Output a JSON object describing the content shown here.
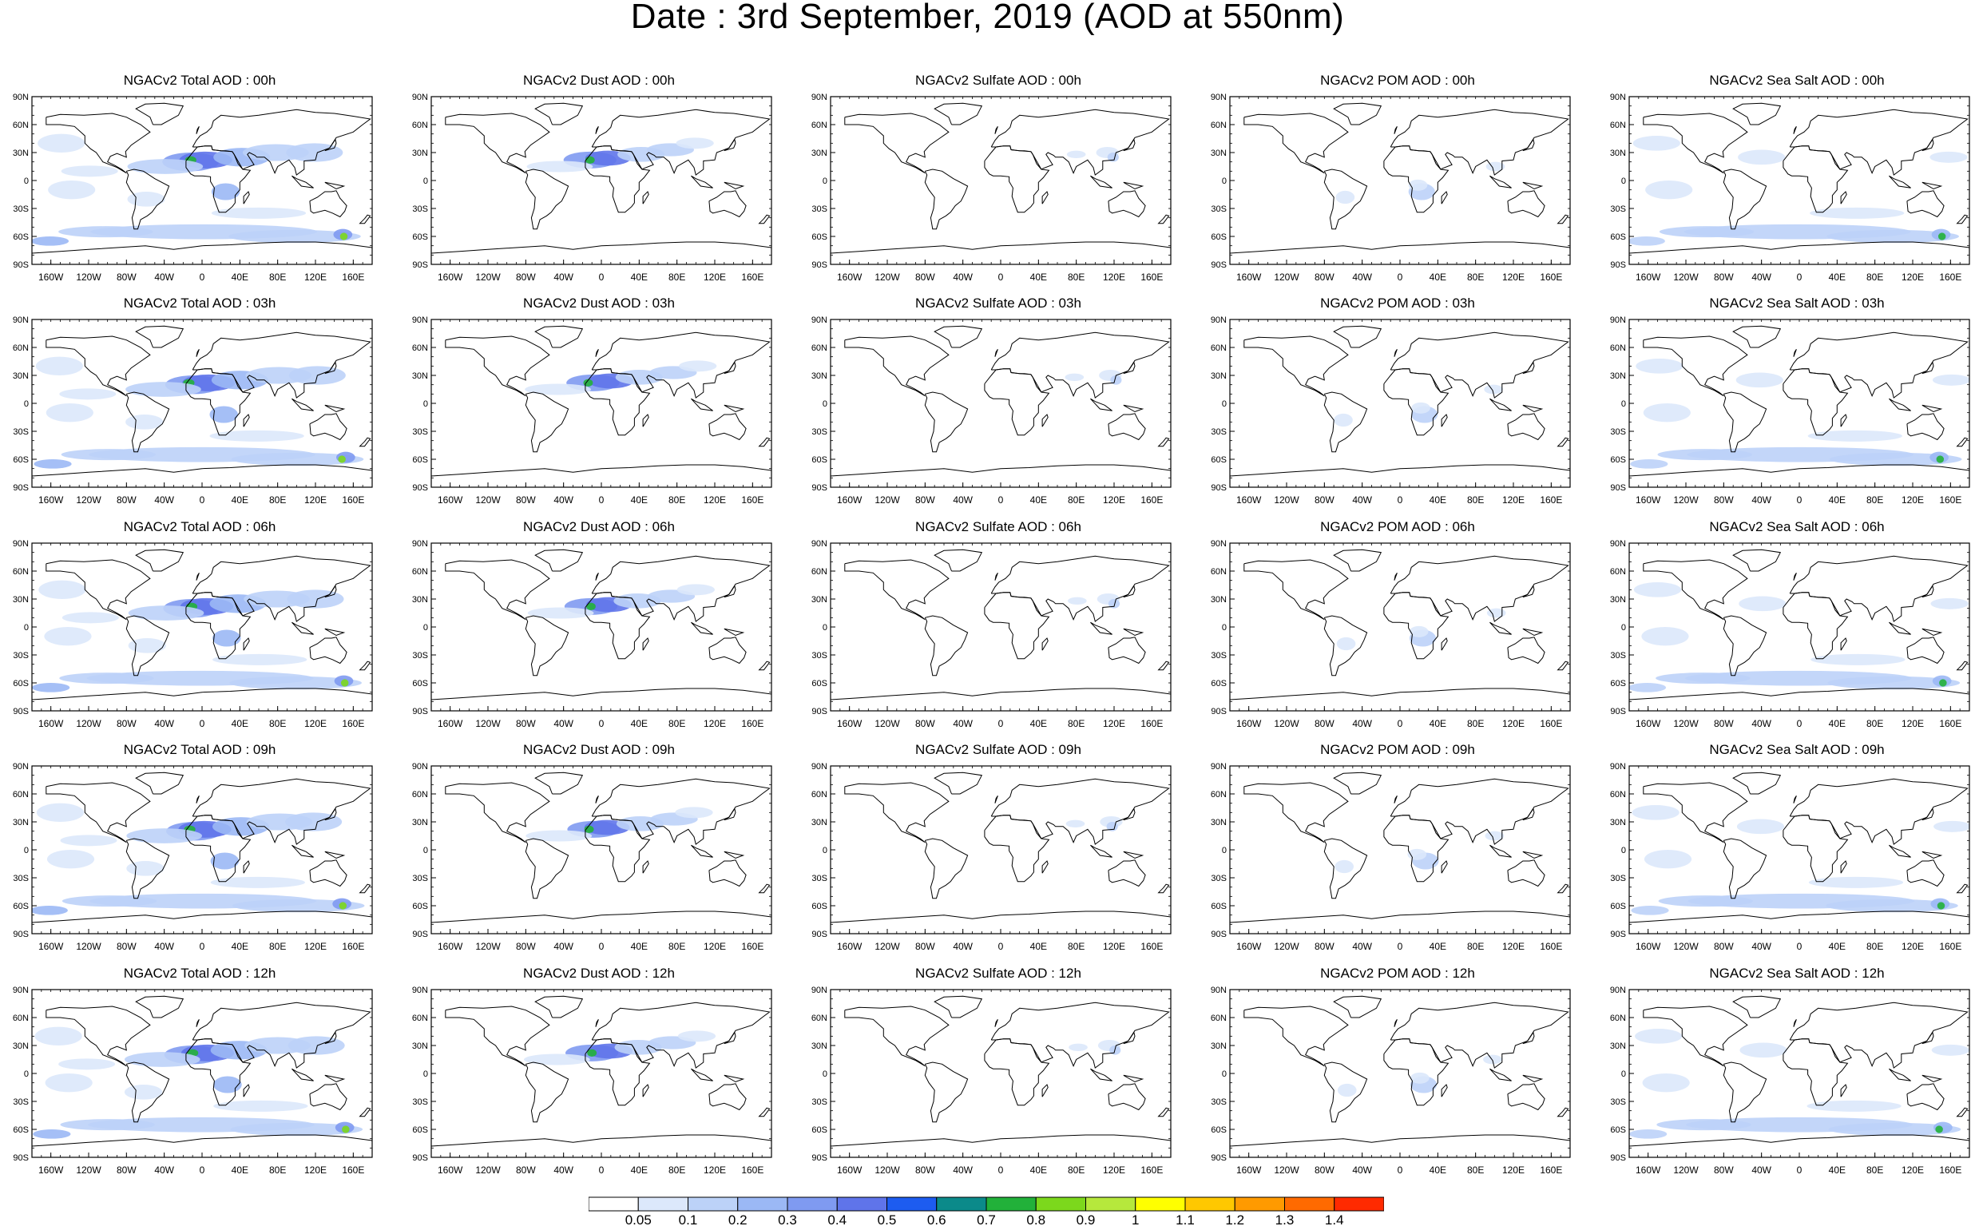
{
  "title": "Date : 3rd September, 2019 (AOD at 550nm)",
  "lat_ticks": [
    "90N",
    "60N",
    "30N",
    "0",
    "30S",
    "60S",
    "90S"
  ],
  "lon_ticks": [
    "160W",
    "120W",
    "80W",
    "40W",
    "0",
    "40E",
    "80E",
    "120E",
    "160E"
  ],
  "panels": [
    [
      "NGACv2 Total AOD : 00h",
      "NGACv2 Dust AOD : 00h",
      "NGACv2 Sulfate AOD : 00h",
      "NGACv2 POM AOD : 00h",
      "NGACv2 Sea Salt AOD : 00h"
    ],
    [
      "NGACv2 Total AOD : 03h",
      "NGACv2 Dust AOD : 03h",
      "NGACv2 Sulfate AOD : 03h",
      "NGACv2 POM AOD : 03h",
      "NGACv2 Sea Salt AOD : 03h"
    ],
    [
      "NGACv2 Total AOD : 06h",
      "NGACv2 Dust AOD : 06h",
      "NGACv2 Sulfate AOD : 06h",
      "NGACv2 POM AOD : 06h",
      "NGACv2 Sea Salt AOD : 06h"
    ],
    [
      "NGACv2 Total AOD : 09h",
      "NGACv2 Dust AOD : 09h",
      "NGACv2 Sulfate AOD : 09h",
      "NGACv2 POM AOD : 09h",
      "NGACv2 Sea Salt  AOD : 09h"
    ],
    [
      "NGACv2 Total AOD  : 12h",
      "NGACv2 Dust AOD : 12h",
      "NGACv2 Sulfate AOD : 12h",
      "NGACv2 POM  AOD : 12h",
      "NGACv2 Sea Salt AOD : 12h"
    ]
  ],
  "colorbar": {
    "labels": [
      "0.05",
      "0.1",
      "0.2",
      "0.3",
      "0.4",
      "0.5",
      "0.6",
      "0.7",
      "0.8",
      "0.9",
      "1",
      "1.1",
      "1.2",
      "1.3",
      "1.4"
    ],
    "colors": [
      "#ffffff",
      "#dce8fb",
      "#bcd2f8",
      "#9bb8f5",
      "#7f9af1",
      "#5f74ea",
      "#1d5cf0",
      "#0b8a8a",
      "#22b13a",
      "#7cd81c",
      "#b6e83c",
      "#ffff00",
      "#ffc800",
      "#ff9a00",
      "#ff6a00",
      "#ff2a00"
    ]
  }
}
